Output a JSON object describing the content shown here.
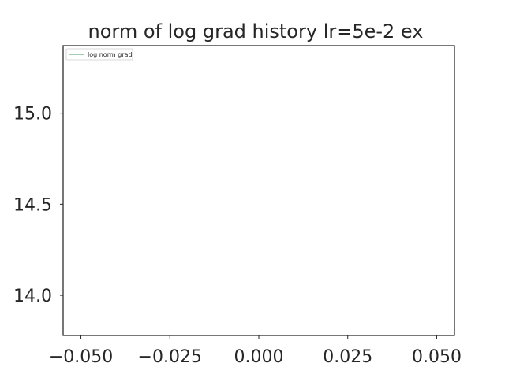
{
  "chart_data": {
    "type": "line",
    "title": "norm of log grad history lr=5e-2 ex",
    "xlabel": "",
    "ylabel": "",
    "xlim": [
      -0.055,
      0.055
    ],
    "ylim": [
      13.78,
      15.37
    ],
    "x_ticks": [
      -0.05,
      -0.025,
      0.0,
      0.025,
      0.05
    ],
    "x_tick_labels": [
      "−0.050",
      "−0.025",
      "0.000",
      "0.025",
      "0.050"
    ],
    "y_ticks": [
      14.0,
      14.5,
      15.0
    ],
    "y_tick_labels": [
      "14.0",
      "14.5",
      "15.0"
    ],
    "grid": false,
    "legend_position": "upper-left",
    "series": [
      {
        "name": "log norm grad",
        "color": "#4c9a6a",
        "x": [],
        "y": []
      }
    ]
  }
}
